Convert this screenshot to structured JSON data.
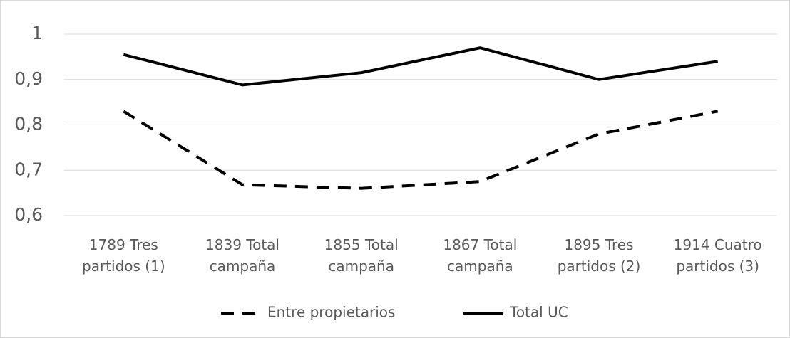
{
  "chart_data": {
    "type": "line",
    "categories": [
      "1789 Tres partidos (1)",
      "1839 Total campaña",
      "1855 Total campaña",
      "1867 Total campaña",
      "1895 Tres partidos (2)",
      "1914 Cuatro partidos (3)"
    ],
    "series": [
      {
        "name": "Entre propietarios",
        "color": "#000000",
        "dash": true,
        "values": [
          0.83,
          0.668,
          0.66,
          0.675,
          0.78,
          0.83
        ]
      },
      {
        "name": "Total UC",
        "color": "#000000",
        "dash": false,
        "values": [
          0.955,
          0.888,
          0.915,
          0.97,
          0.9,
          0.94
        ]
      }
    ],
    "ylim": [
      0.6,
      1
    ],
    "yticks": [
      {
        "value": 0.6,
        "label": "0,6"
      },
      {
        "value": 0.7,
        "label": "0,7"
      },
      {
        "value": 0.8,
        "label": "0,8"
      },
      {
        "value": 0.9,
        "label": "0,9"
      },
      1
    ],
    "grid": true,
    "legend": "bottom"
  }
}
